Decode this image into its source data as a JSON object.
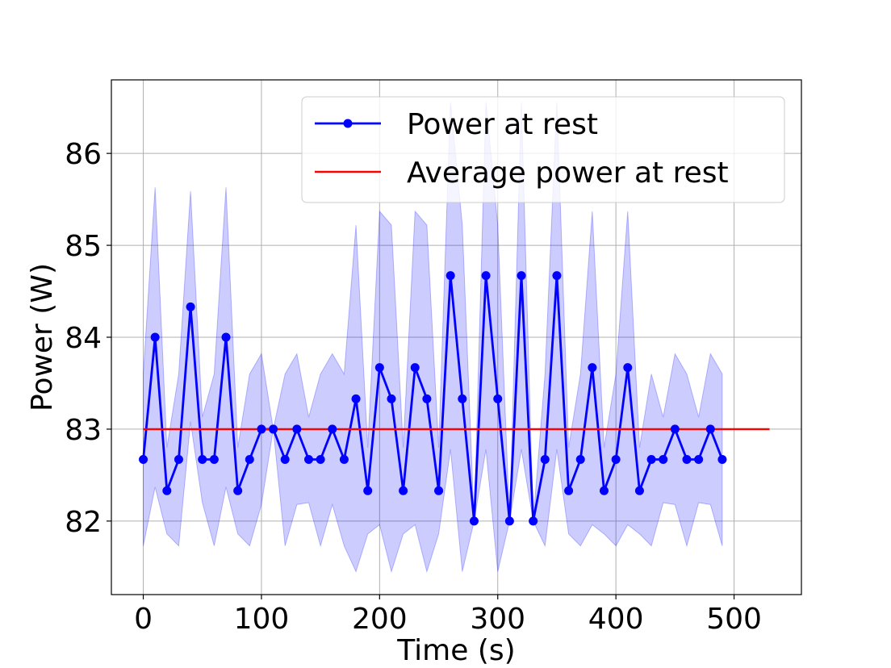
{
  "chart_data": {
    "type": "line",
    "xlabel": "Time (s)",
    "ylabel": "Power (W)",
    "xlim": [
      -27,
      557
    ],
    "ylim": [
      81.2,
      86.8
    ],
    "xticks": [
      0,
      100,
      200,
      300,
      400,
      500
    ],
    "yticks": [
      82,
      83,
      84,
      85,
      86
    ],
    "grid": true,
    "legend_position": "top-right",
    "colors": {
      "series": "#0000ff",
      "band": "#0000ff",
      "average": "#ff0000"
    },
    "series": [
      {
        "name": "Power at rest",
        "kind": "line-markers",
        "x": [
          0,
          10,
          20,
          30,
          40,
          50,
          60,
          70,
          80,
          90,
          100,
          110,
          120,
          130,
          140,
          150,
          160,
          170,
          180,
          190,
          200,
          210,
          220,
          230,
          240,
          250,
          260,
          270,
          280,
          290,
          300,
          310,
          320,
          330,
          340,
          350,
          360,
          370,
          380,
          390,
          400,
          410,
          420,
          430,
          440,
          450,
          460,
          470,
          480,
          490
        ],
        "y": [
          82.67,
          84.0,
          82.33,
          82.67,
          84.33,
          82.67,
          82.67,
          84.0,
          82.33,
          82.67,
          83.0,
          83.0,
          82.67,
          83.0,
          82.67,
          82.67,
          83.0,
          82.67,
          83.33,
          82.33,
          83.67,
          83.33,
          82.33,
          83.67,
          83.33,
          82.33,
          84.67,
          83.33,
          82.0,
          84.67,
          83.33,
          82.0,
          84.67,
          82.0,
          82.67,
          84.67,
          82.33,
          82.67,
          83.67,
          82.33,
          82.67,
          83.67,
          82.33,
          82.67,
          82.67,
          83.0,
          82.67,
          82.67,
          83.0,
          82.67
        ],
        "band_upper": [
          83.6,
          85.63,
          82.8,
          83.6,
          85.59,
          83.13,
          83.6,
          85.63,
          82.8,
          83.6,
          83.82,
          83.0,
          83.6,
          83.82,
          83.13,
          83.6,
          83.82,
          83.6,
          85.22,
          82.8,
          85.37,
          85.22,
          82.8,
          85.37,
          85.22,
          82.8,
          86.56,
          85.22,
          82.0,
          86.56,
          85.22,
          82.0,
          86.56,
          82.0,
          83.6,
          86.56,
          82.8,
          83.6,
          85.37,
          82.8,
          83.6,
          85.37,
          82.8,
          83.6,
          83.13,
          83.82,
          83.6,
          83.13,
          83.82,
          83.6
        ],
        "band_lower": [
          81.73,
          82.37,
          81.86,
          81.73,
          83.08,
          82.2,
          81.73,
          82.37,
          81.86,
          81.73,
          82.18,
          83.0,
          81.73,
          82.18,
          82.2,
          81.73,
          82.18,
          81.73,
          81.45,
          81.86,
          81.96,
          81.45,
          81.86,
          81.96,
          81.45,
          81.86,
          82.78,
          81.45,
          82.0,
          82.78,
          81.45,
          82.0,
          82.78,
          82.0,
          81.73,
          82.78,
          81.86,
          81.73,
          81.96,
          81.86,
          81.73,
          81.96,
          81.86,
          81.73,
          82.2,
          82.18,
          81.73,
          82.2,
          82.18,
          81.73
        ]
      },
      {
        "name": "Average power at rest",
        "kind": "line",
        "x": [
          0,
          530
        ],
        "y": [
          83.0,
          83.0
        ]
      }
    ]
  }
}
